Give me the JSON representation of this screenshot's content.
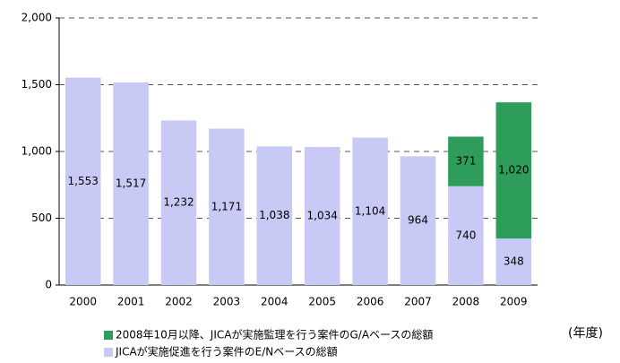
{
  "chart_data": {
    "type": "stacked_bar",
    "categories": [
      "2000",
      "2001",
      "2002",
      "2003",
      "2004",
      "2005",
      "2006",
      "2007",
      "2008",
      "2009"
    ],
    "series": [
      {
        "name": "JICAが実施促進を行う案件のE/Nベースの総額",
        "color": "#c9c9f5",
        "values": [
          1553,
          1517,
          1232,
          1171,
          1038,
          1034,
          1104,
          964,
          740,
          348
        ],
        "value_labels": [
          "1,553",
          "1,517",
          "1,232",
          "1,171",
          "1,038",
          "1,034",
          "1,104",
          "964",
          "740",
          "348"
        ]
      },
      {
        "name": "2008年10月以降、JICAが実施監理を行う案件のG/Aベースの総額",
        "color": "#2e9d5c",
        "values": [
          null,
          null,
          null,
          null,
          null,
          null,
          null,
          null,
          371,
          1020
        ],
        "value_labels": [
          null,
          null,
          null,
          null,
          null,
          null,
          null,
          null,
          "371",
          "1,020"
        ]
      }
    ],
    "x_label": "(年度)",
    "ylim": [
      0,
      2000
    ],
    "yticks": [
      0,
      500,
      {
        "value": 1000,
        "label": "1,000"
      },
      {
        "value": 1500,
        "label": "1,500"
      },
      {
        "value": 2000,
        "label": "2,000"
      }
    ],
    "grid": true,
    "legend": "bottom-left"
  }
}
